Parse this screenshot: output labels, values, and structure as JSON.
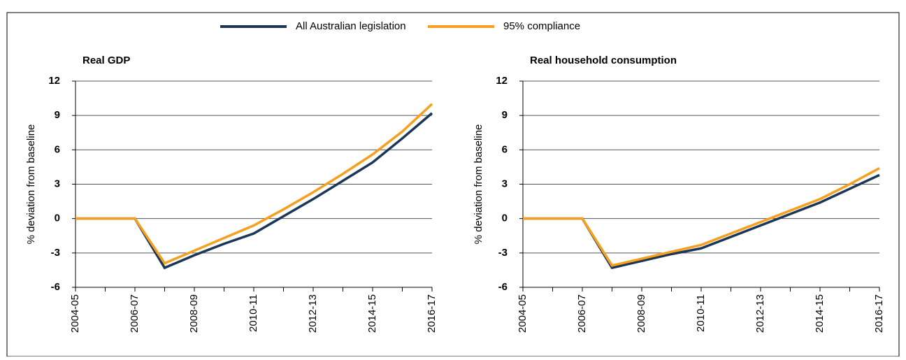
{
  "chart_data": [
    {
      "type": "line",
      "title": "Real GDP",
      "ylabel": "% deviation from baseline",
      "categories": [
        "2004-05",
        null,
        "2006-07",
        null,
        "2008-09",
        null,
        "2010-11",
        null,
        "2012-13",
        null,
        "2014-15",
        null,
        "2016-17"
      ],
      "series": [
        {
          "name": "All Australian legislation",
          "color": "#1c3657",
          "values": [
            0,
            0,
            0,
            -4.3,
            -3.2,
            -2.2,
            -1.3,
            0.2,
            1.7,
            3.3,
            4.9,
            7.0,
            9.2
          ]
        },
        {
          "name": "95% compliance",
          "color": "#f5a01e",
          "values": [
            0,
            0,
            0,
            -3.9,
            -2.8,
            -1.7,
            -0.6,
            0.8,
            2.3,
            3.9,
            5.6,
            7.6,
            10.0
          ]
        }
      ],
      "ylim": [
        -6,
        12
      ],
      "yticks": [
        -6,
        -3,
        0,
        3,
        6,
        9,
        12
      ],
      "grid": true
    },
    {
      "type": "line",
      "title": "Real household consumption",
      "ylabel": "% deviation from baseline",
      "categories": [
        "2004-05",
        null,
        "2006-07",
        null,
        "2008-09",
        null,
        "2010-11",
        null,
        "2012-13",
        null,
        "2014-15",
        null,
        "2016-17"
      ],
      "series": [
        {
          "color": "#1c3657",
          "values": [
            0,
            0,
            0,
            -4.3,
            -3.7,
            -3.1,
            -2.6,
            -1.6,
            -0.6,
            0.4,
            1.4,
            2.6,
            3.8
          ]
        },
        {
          "color": "#f5a01e",
          "values": [
            0,
            0,
            0,
            -4.1,
            -3.5,
            -2.9,
            -2.3,
            -1.3,
            -0.3,
            0.7,
            1.7,
            3.0,
            4.4
          ]
        }
      ],
      "ylim": [
        -6,
        12
      ],
      "yticks": [
        -6,
        -3,
        0,
        3,
        6,
        9,
        12
      ],
      "grid": true
    }
  ]
}
